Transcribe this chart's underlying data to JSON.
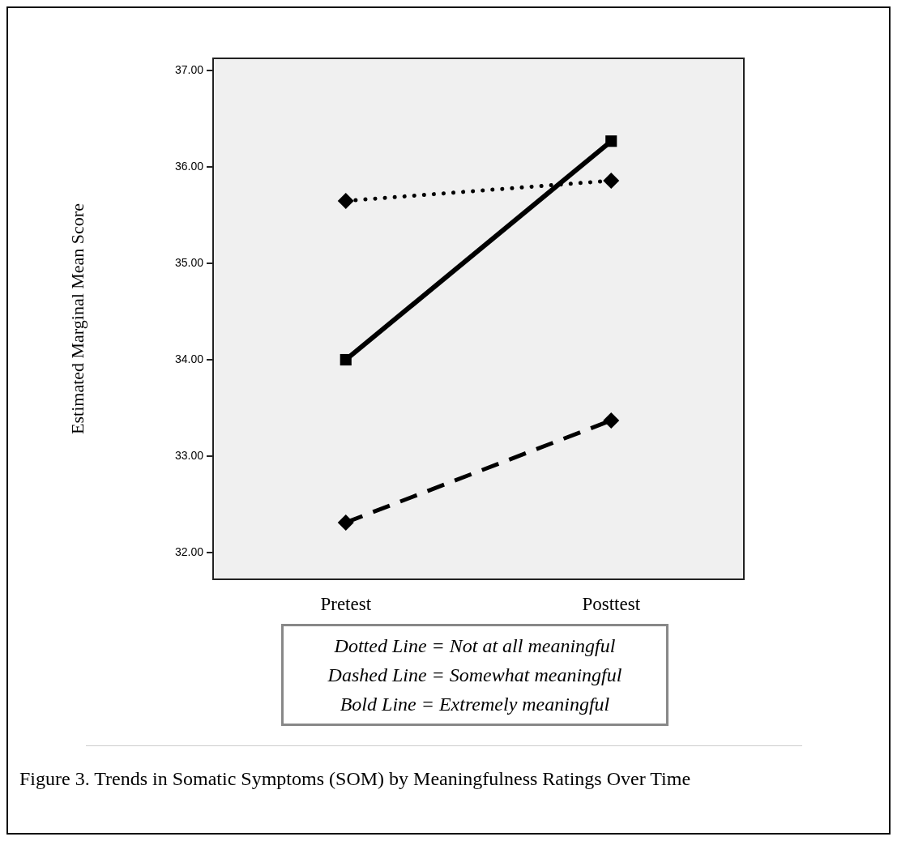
{
  "chart_data": {
    "type": "line",
    "ylabel": "Estimated Marginal Mean Score",
    "categories": [
      "Pretest",
      "Posttest"
    ],
    "series": [
      {
        "color": "#000000",
        "values": [
          35.65,
          35.86
        ],
        "line_style": "dotted",
        "marker": "diamond"
      },
      {
        "color": "#000000",
        "values": [
          32.31,
          33.37
        ],
        "line_style": "dashed",
        "marker": "diamond"
      },
      {
        "color": "#000000",
        "values": [
          34.0,
          36.27
        ],
        "line_style": "solid",
        "marker": "square"
      }
    ],
    "ylim": [
      31.72,
      37.13
    ],
    "yticks": [
      {
        "value": 32,
        "label": "32.00"
      },
      {
        "value": 33,
        "label": "33.00"
      },
      {
        "value": 34,
        "label": "34.00"
      },
      {
        "value": 35,
        "label": "35.00"
      },
      {
        "value": 36,
        "label": "36.00"
      },
      {
        "value": 37,
        "label": "37.00"
      }
    ],
    "annotations": [
      "Dotted Line =  Not at all meaningful",
      "Dashed Line =  Somewhat meaningful",
      "Bold Line =  Extremely meaningful",
      "Figure 3.   Trends in Somatic Symptoms (SOM) by Meaningfulness Ratings Over Time"
    ]
  }
}
